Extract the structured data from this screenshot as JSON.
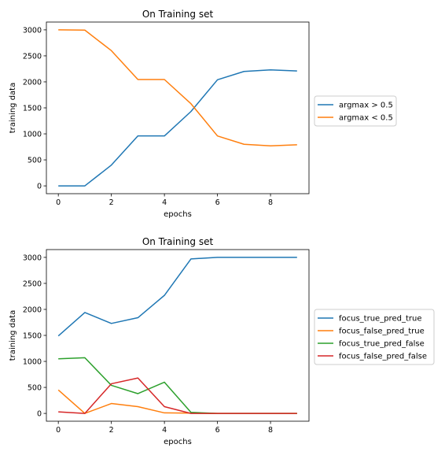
{
  "chart_data": [
    {
      "type": "line",
      "title": "On Training set",
      "xlabel": "epochs",
      "ylabel": "training data",
      "x": [
        0,
        1,
        2,
        3,
        4,
        5,
        6,
        7,
        8,
        9
      ],
      "xlim": [
        -0.45,
        9.45
      ],
      "ylim": [
        -150,
        3150
      ],
      "xticks": [
        0,
        2,
        4,
        6,
        8
      ],
      "yticks": [
        0,
        500,
        1000,
        1500,
        2000,
        2500,
        3000
      ],
      "grid": false,
      "legend_position": "outside-right",
      "series": [
        {
          "name": "argmax > 0.5",
          "color": "#1f77b4",
          "values": [
            0,
            0,
            400,
            960,
            960,
            1430,
            2040,
            2200,
            2230,
            2210
          ]
        },
        {
          "name": "argmax < 0.5",
          "color": "#ff7f0e",
          "values": [
            3000,
            2995,
            2600,
            2045,
            2045,
            1580,
            960,
            800,
            770,
            790
          ]
        }
      ]
    },
    {
      "type": "line",
      "title": "On Training set",
      "xlabel": "epochs",
      "ylabel": "training data",
      "x": [
        0,
        1,
        2,
        3,
        4,
        5,
        6,
        7,
        8,
        9
      ],
      "xlim": [
        -0.45,
        9.45
      ],
      "ylim": [
        -150,
        3150
      ],
      "xticks": [
        0,
        2,
        4,
        6,
        8
      ],
      "yticks": [
        0,
        500,
        1000,
        1500,
        2000,
        2500,
        3000
      ],
      "grid": false,
      "legend_position": "outside-right",
      "series": [
        {
          "name": "focus_true_pred_true",
          "color": "#1f77b4",
          "values": [
            1490,
            1940,
            1730,
            1840,
            2270,
            2970,
            3000,
            3000,
            3000,
            3000
          ]
        },
        {
          "name": "focus_false_pred_true",
          "color": "#ff7f0e",
          "values": [
            450,
            0,
            190,
            130,
            10,
            5,
            0,
            0,
            0,
            0
          ]
        },
        {
          "name": "focus_true_pred_false",
          "color": "#2ca02c",
          "values": [
            1050,
            1070,
            540,
            380,
            600,
            20,
            0,
            0,
            0,
            0
          ]
        },
        {
          "name": "focus_false_pred_false",
          "color": "#d62728",
          "values": [
            30,
            0,
            570,
            680,
            130,
            0,
            0,
            0,
            0,
            0
          ]
        }
      ]
    }
  ]
}
